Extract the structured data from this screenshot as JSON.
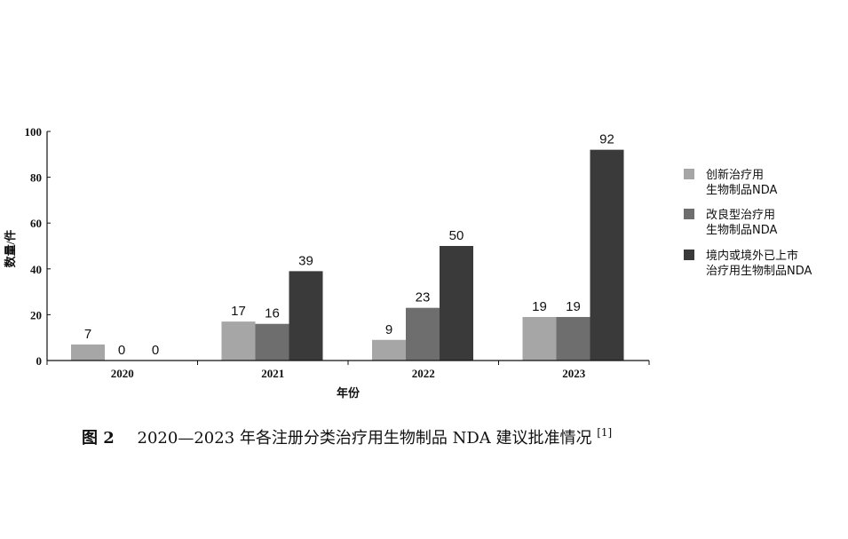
{
  "chart_data": {
    "type": "bar",
    "categories": [
      "2020",
      "2021",
      "2022",
      "2023"
    ],
    "series": [
      {
        "name_lines": [
          "创新治疗用",
          "生物制品NDA"
        ],
        "color": "#a6a6a6",
        "values": [
          7,
          17,
          9,
          19
        ]
      },
      {
        "name_lines": [
          "改良型治疗用",
          "生物制品NDA"
        ],
        "color": "#6e6e6e",
        "values": [
          0,
          16,
          23,
          19
        ]
      },
      {
        "name_lines": [
          "境内或境外已上市",
          "治疗用生物制品NDA"
        ],
        "color": "#3a3a3a",
        "values": [
          0,
          39,
          50,
          92
        ]
      }
    ],
    "xlabel": "年份",
    "ylabel": "数量/件",
    "ylim": [
      0,
      100
    ],
    "yticks": [
      0,
      20,
      40,
      60,
      80,
      100
    ],
    "legend_position": "right"
  },
  "caption": {
    "label": "图 2",
    "text": "2020—2023 年各注册分类治疗用生物制品 NDA 建议批准情况",
    "ref": "[1]"
  }
}
